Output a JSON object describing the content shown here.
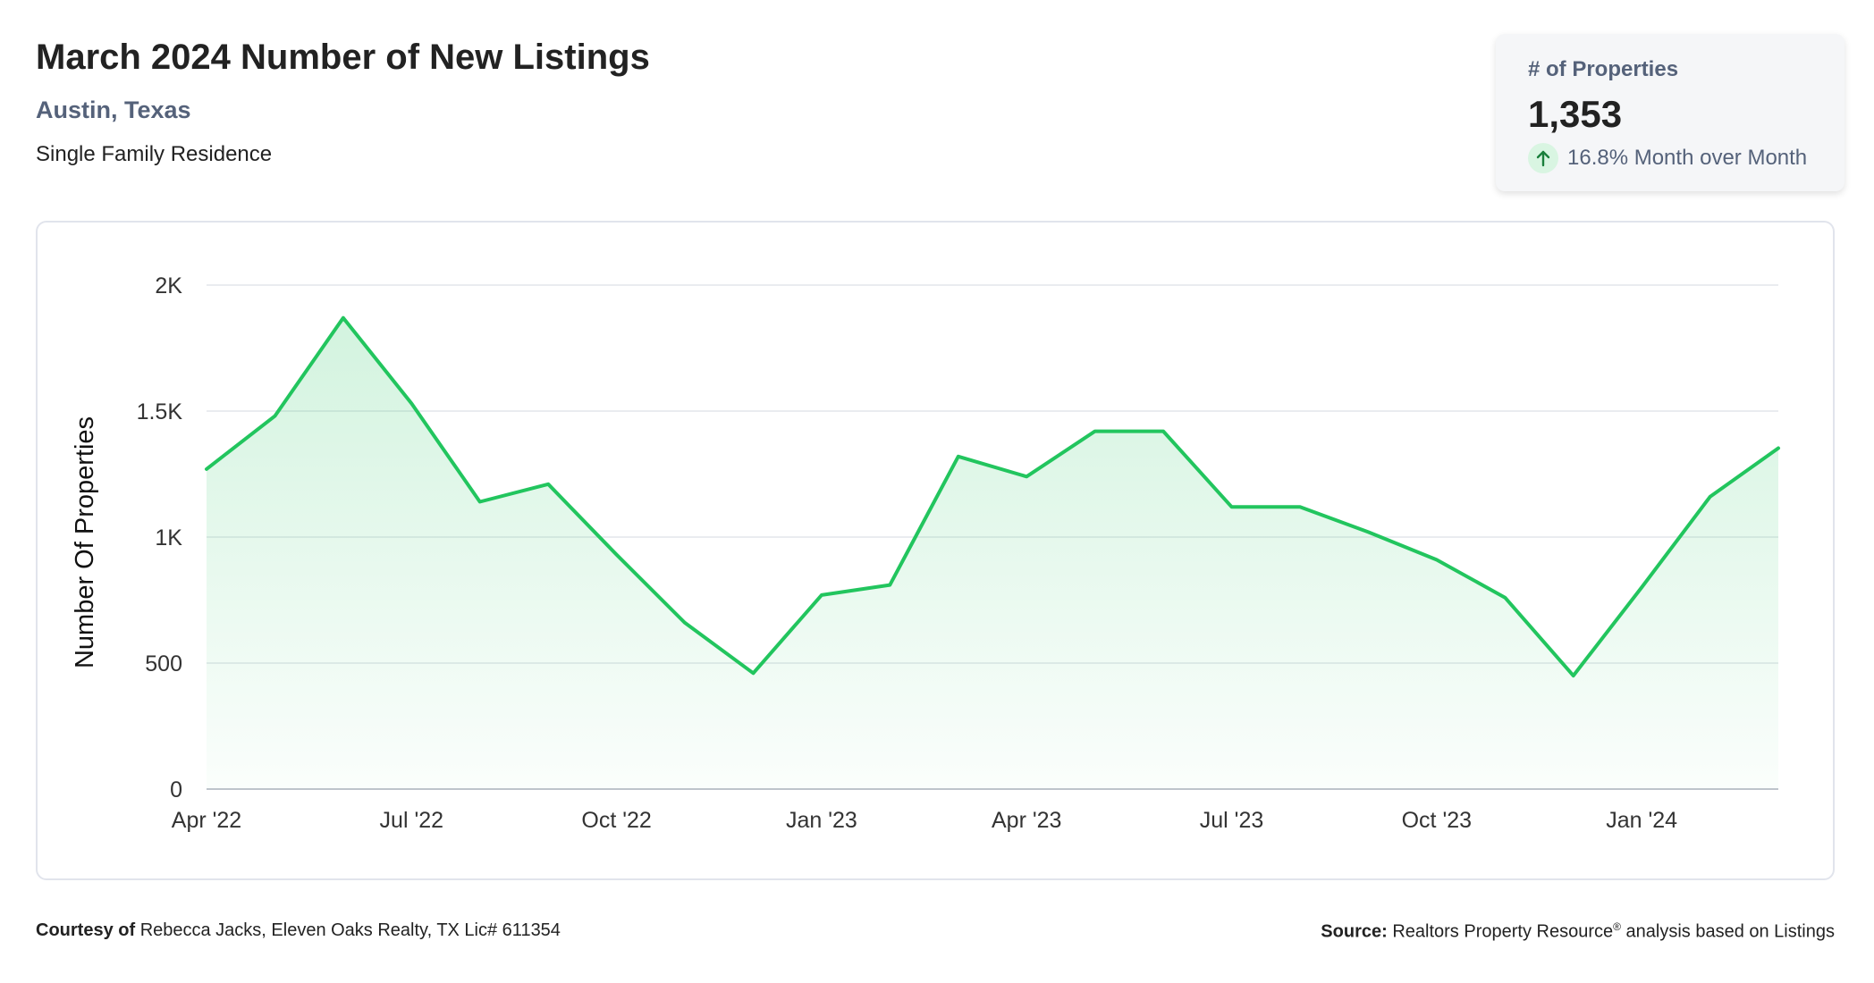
{
  "header": {
    "title": "March 2024 Number of New Listings",
    "location": "Austin, Texas",
    "property_type": "Single Family Residence"
  },
  "kpi": {
    "label": "# of Properties",
    "value": "1,353",
    "change": "16.8% Month over Month",
    "direction": "up",
    "arrow_icon": "arrow-up-icon",
    "accent_color": "#1a7f3c",
    "badge_color": "#d9f5e2"
  },
  "chart_data": {
    "type": "area",
    "x": [
      "Apr '22",
      "May '22",
      "Jun '22",
      "Jul '22",
      "Aug '22",
      "Sep '22",
      "Oct '22",
      "Nov '22",
      "Dec '22",
      "Jan '23",
      "Feb '23",
      "Mar '23",
      "Apr '23",
      "May '23",
      "Jun '23",
      "Jul '23",
      "Aug '23",
      "Sep '23",
      "Oct '23",
      "Nov '23",
      "Dec '23",
      "Jan '24",
      "Feb '24",
      "Mar '24"
    ],
    "series": [
      {
        "values": [
          1270,
          1480,
          1870,
          1530,
          1140,
          1210,
          930,
          660,
          460,
          770,
          810,
          1320,
          1240,
          1420,
          1420,
          1120,
          1120,
          1020,
          910,
          760,
          450,
          800,
          1160,
          1353
        ],
        "color": "#22c55e"
      }
    ],
    "xticks": [
      "Apr '22",
      "Jul '22",
      "Oct '22",
      "Jan '23",
      "Apr '23",
      "Jul '23",
      "Oct '23",
      "Jan '24"
    ],
    "yticks": [
      0,
      500,
      1000,
      1500,
      2000
    ],
    "ytick_labels": [
      "0",
      "500",
      "1K",
      "1.5K",
      "2K"
    ],
    "ylabel": "Number Of Properties",
    "xlabel": "",
    "ylim": [
      0,
      2000
    ],
    "grid": true,
    "fill_gradient": [
      "#22c55e",
      "#ffffff"
    ]
  },
  "footer": {
    "courtesy_label": "Courtesy of",
    "courtesy_text": "Rebecca Jacks, Eleven Oaks Realty, TX Lic# 611354",
    "source_label": "Source:",
    "source_text_1": "Realtors Property Resource",
    "source_sup": "®",
    "source_text_2": "analysis based on Listings"
  }
}
